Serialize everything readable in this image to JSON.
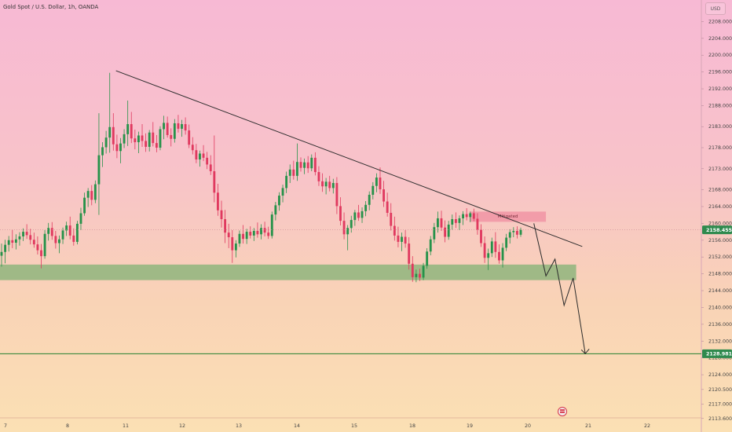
{
  "header": {
    "symbol_title": "Gold Spot / U.S. Dollar, 1h, OANDA",
    "currency": "USD"
  },
  "chart_data": {
    "type": "candlestick",
    "symbol": "Gold Spot / U.S. Dollar",
    "interval": "1h",
    "source": "OANDA",
    "y_axis": {
      "ticks": [
        "2208.000",
        "2204.000",
        "2200.000",
        "2196.000",
        "2192.000",
        "2188.000",
        "2183.000",
        "2178.000",
        "2173.000",
        "2168.000",
        "2164.000",
        "2160.000",
        "2156.000",
        "2152.000",
        "2148.000",
        "2144.000",
        "2140.000",
        "2136.000",
        "2132.000",
        "2128.000",
        "2124.000",
        "2120.500",
        "2117.000",
        "2113.600"
      ],
      "ylim": [
        2111.5,
        2212
      ]
    },
    "x_axis": {
      "ticks": [
        "7",
        "8",
        "11",
        "12",
        "13",
        "14",
        "15",
        "18",
        "19",
        "20",
        "21",
        "22"
      ]
    },
    "current_price": {
      "value": 2158.455,
      "label": "2158.455"
    },
    "target_price": {
      "value": 2128.981,
      "label": "2128.981"
    },
    "annotations": {
      "mitigated_label": "Mitigated",
      "mitigated_zone": {
        "x_start": "19",
        "x_end": "20.3",
        "y_low": 2159.8,
        "y_high": 2161.3
      },
      "support_zone": {
        "x_start": "7",
        "x_end": "20.8",
        "y_low": 2146.5,
        "y_high": 2150.2
      },
      "trendline": {
        "from": {
          "x": "10.5",
          "y": 2196.3
        },
        "to": {
          "x": "20.9",
          "y": 2154.5
        }
      },
      "projected_path": [
        {
          "x": "20.1",
          "y": 2160.0
        },
        {
          "x": "20.3",
          "y": 2147.5
        },
        {
          "x": "20.45",
          "y": 2151.5
        },
        {
          "x": "20.6",
          "y": 2140.5
        },
        {
          "x": "20.75",
          "y": 2147.0
        },
        {
          "x": "20.95",
          "y": 2129.0
        }
      ]
    },
    "candles": [
      {
        "o": 2152.3,
        "h": 2155.2,
        "l": 2149.7,
        "c": 2153.2
      },
      {
        "o": 2153.2,
        "h": 2156.1,
        "l": 2150.5,
        "c": 2154.9
      },
      {
        "o": 2154.9,
        "h": 2157.0,
        "l": 2153.3,
        "c": 2156.0
      },
      {
        "o": 2156.0,
        "h": 2158.5,
        "l": 2154.1,
        "c": 2155.4
      },
      {
        "o": 2155.4,
        "h": 2157.4,
        "l": 2153.8,
        "c": 2156.2
      },
      {
        "o": 2156.2,
        "h": 2157.9,
        "l": 2154.7,
        "c": 2156.9
      },
      {
        "o": 2156.9,
        "h": 2158.8,
        "l": 2155.8,
        "c": 2158.0
      },
      {
        "o": 2158.0,
        "h": 2159.8,
        "l": 2156.3,
        "c": 2157.2
      },
      {
        "o": 2157.2,
        "h": 2158.7,
        "l": 2155.0,
        "c": 2156.1
      },
      {
        "o": 2156.1,
        "h": 2157.8,
        "l": 2154.2,
        "c": 2155.0
      },
      {
        "o": 2155.0,
        "h": 2156.9,
        "l": 2152.6,
        "c": 2153.6
      },
      {
        "o": 2153.6,
        "h": 2155.1,
        "l": 2149.3,
        "c": 2152.2
      },
      {
        "o": 2152.2,
        "h": 2158.4,
        "l": 2151.6,
        "c": 2157.5
      },
      {
        "o": 2157.5,
        "h": 2160.1,
        "l": 2155.9,
        "c": 2158.9
      },
      {
        "o": 2158.9,
        "h": 2160.3,
        "l": 2156.1,
        "c": 2157.0
      },
      {
        "o": 2157.0,
        "h": 2158.2,
        "l": 2154.0,
        "c": 2155.3
      },
      {
        "o": 2155.3,
        "h": 2157.1,
        "l": 2152.9,
        "c": 2156.2
      },
      {
        "o": 2156.2,
        "h": 2159.0,
        "l": 2155.1,
        "c": 2158.3
      },
      {
        "o": 2158.3,
        "h": 2160.4,
        "l": 2157.0,
        "c": 2159.5
      },
      {
        "o": 2159.5,
        "h": 2161.6,
        "l": 2156.2,
        "c": 2157.1
      },
      {
        "o": 2157.1,
        "h": 2158.8,
        "l": 2154.7,
        "c": 2155.6
      },
      {
        "o": 2155.6,
        "h": 2160.6,
        "l": 2155.0,
        "c": 2159.9
      },
      {
        "o": 2159.9,
        "h": 2163.7,
        "l": 2158.4,
        "c": 2162.4
      },
      {
        "o": 2162.4,
        "h": 2167.3,
        "l": 2161.8,
        "c": 2166.1
      },
      {
        "o": 2166.1,
        "h": 2168.4,
        "l": 2163.9,
        "c": 2167.7
      },
      {
        "o": 2167.7,
        "h": 2169.1,
        "l": 2164.3,
        "c": 2165.6
      },
      {
        "o": 2165.6,
        "h": 2170.2,
        "l": 2164.8,
        "c": 2169.3
      },
      {
        "o": 2169.3,
        "h": 2186.2,
        "l": 2162.0,
        "c": 2176.2
      },
      {
        "o": 2176.2,
        "h": 2179.3,
        "l": 2173.4,
        "c": 2178.1
      },
      {
        "o": 2178.1,
        "h": 2182.0,
        "l": 2176.6,
        "c": 2180.4
      },
      {
        "o": 2180.4,
        "h": 2195.8,
        "l": 2176.8,
        "c": 2182.9
      },
      {
        "o": 2182.9,
        "h": 2186.2,
        "l": 2177.3,
        "c": 2178.8
      },
      {
        "o": 2178.8,
        "h": 2181.1,
        "l": 2175.5,
        "c": 2177.2
      },
      {
        "o": 2177.2,
        "h": 2180.3,
        "l": 2174.3,
        "c": 2179.0
      },
      {
        "o": 2179.0,
        "h": 2182.4,
        "l": 2177.9,
        "c": 2181.2
      },
      {
        "o": 2181.2,
        "h": 2189.2,
        "l": 2178.4,
        "c": 2183.6
      },
      {
        "o": 2183.6,
        "h": 2186.5,
        "l": 2179.1,
        "c": 2180.2
      },
      {
        "o": 2180.2,
        "h": 2182.3,
        "l": 2177.6,
        "c": 2179.3
      },
      {
        "o": 2179.3,
        "h": 2181.8,
        "l": 2176.7,
        "c": 2180.9
      },
      {
        "o": 2180.9,
        "h": 2183.6,
        "l": 2178.2,
        "c": 2179.6
      },
      {
        "o": 2179.6,
        "h": 2181.4,
        "l": 2177.0,
        "c": 2178.2
      },
      {
        "o": 2178.2,
        "h": 2182.2,
        "l": 2177.1,
        "c": 2181.6
      },
      {
        "o": 2181.6,
        "h": 2184.1,
        "l": 2178.3,
        "c": 2179.1
      },
      {
        "o": 2179.1,
        "h": 2181.0,
        "l": 2176.9,
        "c": 2178.0
      },
      {
        "o": 2178.0,
        "h": 2183.1,
        "l": 2177.4,
        "c": 2182.4
      },
      {
        "o": 2182.4,
        "h": 2185.6,
        "l": 2180.0,
        "c": 2183.9
      },
      {
        "o": 2183.9,
        "h": 2185.4,
        "l": 2180.4,
        "c": 2181.0
      },
      {
        "o": 2181.0,
        "h": 2182.6,
        "l": 2178.3,
        "c": 2180.1
      },
      {
        "o": 2180.1,
        "h": 2184.8,
        "l": 2179.2,
        "c": 2183.8
      },
      {
        "o": 2183.8,
        "h": 2185.8,
        "l": 2181.6,
        "c": 2182.5
      },
      {
        "o": 2182.5,
        "h": 2184.6,
        "l": 2180.6,
        "c": 2183.6
      },
      {
        "o": 2183.6,
        "h": 2185.2,
        "l": 2181.1,
        "c": 2182.1
      },
      {
        "o": 2182.1,
        "h": 2183.5,
        "l": 2177.9,
        "c": 2178.7
      },
      {
        "o": 2178.7,
        "h": 2180.5,
        "l": 2176.4,
        "c": 2177.4
      },
      {
        "o": 2177.4,
        "h": 2178.9,
        "l": 2174.3,
        "c": 2175.2
      },
      {
        "o": 2175.2,
        "h": 2177.3,
        "l": 2173.5,
        "c": 2176.6
      },
      {
        "o": 2176.6,
        "h": 2178.6,
        "l": 2174.8,
        "c": 2175.6
      },
      {
        "o": 2175.6,
        "h": 2177.0,
        "l": 2172.9,
        "c": 2174.0
      },
      {
        "o": 2174.0,
        "h": 2176.2,
        "l": 2171.5,
        "c": 2172.4
      },
      {
        "o": 2172.4,
        "h": 2180.9,
        "l": 2165.0,
        "c": 2167.3
      },
      {
        "o": 2167.3,
        "h": 2169.4,
        "l": 2161.8,
        "c": 2163.1
      },
      {
        "o": 2163.1,
        "h": 2165.4,
        "l": 2159.0,
        "c": 2161.0
      },
      {
        "o": 2161.0,
        "h": 2163.2,
        "l": 2155.3,
        "c": 2157.8
      },
      {
        "o": 2157.8,
        "h": 2159.9,
        "l": 2154.1,
        "c": 2156.7
      },
      {
        "o": 2156.7,
        "h": 2158.4,
        "l": 2150.6,
        "c": 2153.6
      },
      {
        "o": 2153.6,
        "h": 2156.0,
        "l": 2151.9,
        "c": 2155.2
      },
      {
        "o": 2155.2,
        "h": 2158.3,
        "l": 2154.4,
        "c": 2157.5
      },
      {
        "o": 2157.5,
        "h": 2159.6,
        "l": 2155.2,
        "c": 2156.3
      },
      {
        "o": 2156.3,
        "h": 2158.7,
        "l": 2155.1,
        "c": 2158.0
      },
      {
        "o": 2158.0,
        "h": 2159.3,
        "l": 2156.4,
        "c": 2157.1
      },
      {
        "o": 2157.1,
        "h": 2158.9,
        "l": 2155.8,
        "c": 2158.2
      },
      {
        "o": 2158.2,
        "h": 2160.2,
        "l": 2156.6,
        "c": 2157.4
      },
      {
        "o": 2157.4,
        "h": 2159.8,
        "l": 2156.2,
        "c": 2158.9
      },
      {
        "o": 2158.9,
        "h": 2160.4,
        "l": 2156.9,
        "c": 2157.8
      },
      {
        "o": 2157.8,
        "h": 2159.2,
        "l": 2156.3,
        "c": 2157.0
      },
      {
        "o": 2157.0,
        "h": 2162.8,
        "l": 2156.4,
        "c": 2162.1
      },
      {
        "o": 2162.1,
        "h": 2165.1,
        "l": 2160.7,
        "c": 2164.3
      },
      {
        "o": 2164.3,
        "h": 2167.4,
        "l": 2163.0,
        "c": 2166.6
      },
      {
        "o": 2166.6,
        "h": 2169.2,
        "l": 2165.0,
        "c": 2168.4
      },
      {
        "o": 2168.4,
        "h": 2172.3,
        "l": 2167.2,
        "c": 2171.3
      },
      {
        "o": 2171.3,
        "h": 2174.0,
        "l": 2169.6,
        "c": 2172.8
      },
      {
        "o": 2172.8,
        "h": 2174.9,
        "l": 2170.4,
        "c": 2171.3
      },
      {
        "o": 2171.3,
        "h": 2179.0,
        "l": 2170.1,
        "c": 2174.6
      },
      {
        "o": 2174.6,
        "h": 2175.7,
        "l": 2172.3,
        "c": 2173.2
      },
      {
        "o": 2173.2,
        "h": 2175.4,
        "l": 2171.7,
        "c": 2174.5
      },
      {
        "o": 2174.5,
        "h": 2176.0,
        "l": 2172.0,
        "c": 2173.1
      },
      {
        "o": 2173.1,
        "h": 2176.4,
        "l": 2172.4,
        "c": 2175.6
      },
      {
        "o": 2175.6,
        "h": 2176.9,
        "l": 2171.4,
        "c": 2172.2
      },
      {
        "o": 2172.2,
        "h": 2173.6,
        "l": 2168.9,
        "c": 2170.0
      },
      {
        "o": 2170.0,
        "h": 2171.9,
        "l": 2167.5,
        "c": 2168.8
      },
      {
        "o": 2168.8,
        "h": 2170.8,
        "l": 2166.9,
        "c": 2169.9
      },
      {
        "o": 2169.9,
        "h": 2171.3,
        "l": 2167.6,
        "c": 2168.4
      },
      {
        "o": 2168.4,
        "h": 2170.6,
        "l": 2167.1,
        "c": 2169.6
      },
      {
        "o": 2169.6,
        "h": 2171.0,
        "l": 2162.2,
        "c": 2164.1
      },
      {
        "o": 2164.1,
        "h": 2166.2,
        "l": 2159.5,
        "c": 2160.6
      },
      {
        "o": 2160.6,
        "h": 2162.6,
        "l": 2156.2,
        "c": 2157.4
      },
      {
        "o": 2157.4,
        "h": 2159.6,
        "l": 2153.6,
        "c": 2158.9
      },
      {
        "o": 2158.9,
        "h": 2161.8,
        "l": 2157.8,
        "c": 2160.8
      },
      {
        "o": 2160.8,
        "h": 2163.2,
        "l": 2159.4,
        "c": 2162.6
      },
      {
        "o": 2162.6,
        "h": 2164.4,
        "l": 2160.6,
        "c": 2161.3
      },
      {
        "o": 2161.3,
        "h": 2163.8,
        "l": 2160.1,
        "c": 2162.9
      },
      {
        "o": 2162.9,
        "h": 2165.3,
        "l": 2161.7,
        "c": 2164.4
      },
      {
        "o": 2164.4,
        "h": 2167.6,
        "l": 2163.1,
        "c": 2166.8
      },
      {
        "o": 2166.8,
        "h": 2169.8,
        "l": 2165.7,
        "c": 2168.9
      },
      {
        "o": 2168.9,
        "h": 2171.9,
        "l": 2167.4,
        "c": 2170.9
      },
      {
        "o": 2170.9,
        "h": 2173.3,
        "l": 2167.0,
        "c": 2168.1
      },
      {
        "o": 2168.1,
        "h": 2170.1,
        "l": 2163.9,
        "c": 2165.2
      },
      {
        "o": 2165.2,
        "h": 2167.3,
        "l": 2161.6,
        "c": 2162.5
      },
      {
        "o": 2162.5,
        "h": 2164.8,
        "l": 2158.3,
        "c": 2159.4
      },
      {
        "o": 2159.4,
        "h": 2161.6,
        "l": 2155.9,
        "c": 2157.1
      },
      {
        "o": 2157.1,
        "h": 2159.2,
        "l": 2154.3,
        "c": 2155.6
      },
      {
        "o": 2155.6,
        "h": 2157.8,
        "l": 2153.4,
        "c": 2156.8
      },
      {
        "o": 2156.8,
        "h": 2158.4,
        "l": 2154.2,
        "c": 2155.2
      },
      {
        "o": 2155.2,
        "h": 2156.7,
        "l": 2149.0,
        "c": 2150.4
      },
      {
        "o": 2150.4,
        "h": 2152.2,
        "l": 2146.1,
        "c": 2147.2
      },
      {
        "o": 2147.2,
        "h": 2149.0,
        "l": 2146.0,
        "c": 2148.0
      },
      {
        "o": 2148.0,
        "h": 2149.2,
        "l": 2146.3,
        "c": 2147.1
      },
      {
        "o": 2147.1,
        "h": 2150.6,
        "l": 2146.5,
        "c": 2149.9
      },
      {
        "o": 2149.9,
        "h": 2154.1,
        "l": 2149.2,
        "c": 2153.3
      },
      {
        "o": 2153.3,
        "h": 2157.0,
        "l": 2152.4,
        "c": 2156.2
      },
      {
        "o": 2156.2,
        "h": 2160.1,
        "l": 2155.3,
        "c": 2159.1
      },
      {
        "o": 2159.1,
        "h": 2162.8,
        "l": 2157.8,
        "c": 2161.2
      },
      {
        "o": 2161.2,
        "h": 2163.0,
        "l": 2158.2,
        "c": 2159.0
      },
      {
        "o": 2159.0,
        "h": 2160.7,
        "l": 2155.5,
        "c": 2156.8
      },
      {
        "o": 2156.8,
        "h": 2160.6,
        "l": 2156.1,
        "c": 2159.7
      },
      {
        "o": 2159.7,
        "h": 2162.1,
        "l": 2158.5,
        "c": 2161.0
      },
      {
        "o": 2161.0,
        "h": 2162.6,
        "l": 2158.9,
        "c": 2160.1
      },
      {
        "o": 2160.1,
        "h": 2161.9,
        "l": 2158.4,
        "c": 2161.2
      },
      {
        "o": 2161.2,
        "h": 2162.9,
        "l": 2159.6,
        "c": 2162.2
      },
      {
        "o": 2162.2,
        "h": 2163.6,
        "l": 2160.7,
        "c": 2161.5
      },
      {
        "o": 2161.5,
        "h": 2162.8,
        "l": 2160.3,
        "c": 2162.4
      },
      {
        "o": 2162.4,
        "h": 2163.5,
        "l": 2160.5,
        "c": 2161.1
      },
      {
        "o": 2161.1,
        "h": 2162.4,
        "l": 2157.3,
        "c": 2158.5
      },
      {
        "o": 2158.5,
        "h": 2159.8,
        "l": 2154.4,
        "c": 2155.3
      },
      {
        "o": 2155.3,
        "h": 2156.9,
        "l": 2150.6,
        "c": 2151.8
      },
      {
        "o": 2151.8,
        "h": 2154.0,
        "l": 2148.9,
        "c": 2152.9
      },
      {
        "o": 2152.9,
        "h": 2156.6,
        "l": 2152.0,
        "c": 2155.7
      },
      {
        "o": 2155.7,
        "h": 2157.9,
        "l": 2151.8,
        "c": 2153.2
      },
      {
        "o": 2153.2,
        "h": 2155.0,
        "l": 2150.4,
        "c": 2151.2
      },
      {
        "o": 2151.2,
        "h": 2155.3,
        "l": 2149.5,
        "c": 2154.2
      },
      {
        "o": 2154.2,
        "h": 2157.5,
        "l": 2153.4,
        "c": 2156.6
      },
      {
        "o": 2156.6,
        "h": 2158.6,
        "l": 2155.2,
        "c": 2157.9
      },
      {
        "o": 2157.9,
        "h": 2159.1,
        "l": 2156.7,
        "c": 2158.2
      },
      {
        "o": 2158.2,
        "h": 2159.3,
        "l": 2156.4,
        "c": 2157.3
      },
      {
        "o": 2157.3,
        "h": 2159.0,
        "l": 2156.8,
        "c": 2158.5
      }
    ]
  }
}
